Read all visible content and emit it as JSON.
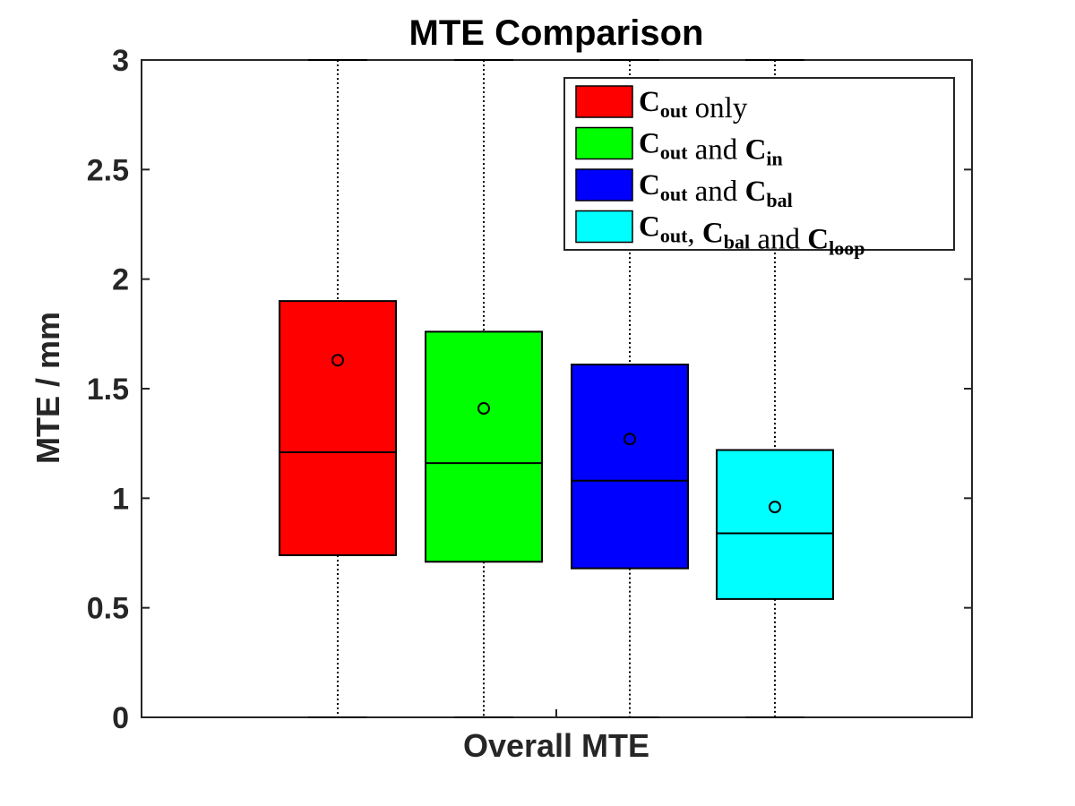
{
  "chart_data": {
    "type": "box",
    "title": "MTE Comparison",
    "xlabel": "Overall MTE",
    "ylabel": "MTE / mm",
    "ylim": [
      0,
      3
    ],
    "yticks": [
      0,
      0.5,
      1,
      1.5,
      2,
      2.5,
      3
    ],
    "ytick_labels": [
      "0",
      "0.5",
      "1",
      "1.5",
      "2",
      "2.5",
      "3"
    ],
    "legend_position": "top-right",
    "series": [
      {
        "legend": {
          "main": "C",
          "sub": "out",
          "text": " only"
        },
        "color": "#ff0000",
        "whisker_low": 0,
        "q1": 0.74,
        "median": 1.21,
        "q3": 1.9,
        "whisker_high": 3,
        "mean": 1.63
      },
      {
        "legend": {
          "main": "C",
          "sub": "out",
          "text": " and ",
          "main2": "C",
          "sub2": "in"
        },
        "color": "#00ff00",
        "whisker_low": 0,
        "q1": 0.71,
        "median": 1.16,
        "q3": 1.76,
        "whisker_high": 3,
        "mean": 1.41
      },
      {
        "legend": {
          "main": "C",
          "sub": "out",
          "text": " and ",
          "main2": "C",
          "sub2": "bal"
        },
        "color": "#0000ff",
        "whisker_low": 0,
        "q1": 0.68,
        "median": 1.08,
        "q3": 1.61,
        "whisker_high": 3,
        "mean": 1.27
      },
      {
        "legend": {
          "main": "C",
          "sub": "out",
          "text": ", ",
          "main2": "C",
          "sub2": "bal",
          "text2": " and ",
          "main3": "C",
          "sub3": "loop"
        },
        "color": "#00ffff",
        "whisker_low": 0,
        "q1": 0.54,
        "median": 0.84,
        "q3": 1.22,
        "whisker_high": 3,
        "mean": 0.96
      }
    ]
  }
}
